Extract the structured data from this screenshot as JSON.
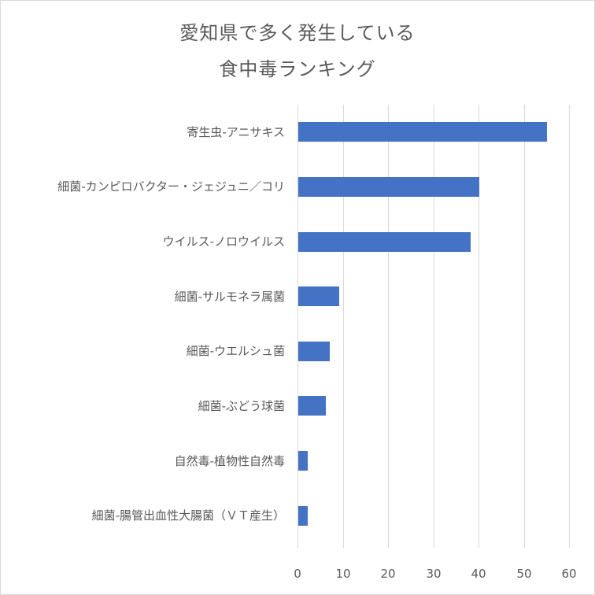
{
  "title": {
    "line1": "愛知県で多く発生している",
    "line2": "食中毒ランキング"
  },
  "colors": {
    "bar": "#4472c4",
    "grid": "#d9d9d9",
    "text": "#595959"
  },
  "chart_data": {
    "type": "bar",
    "orientation": "horizontal",
    "title": "愛知県で多く発生している食中毒ランキング",
    "xlabel": "",
    "ylabel": "",
    "xlim": [
      0,
      60
    ],
    "xticks": [
      "0",
      "10",
      "20",
      "30",
      "40",
      "50",
      "60"
    ],
    "grid": true,
    "legend": null,
    "categories": [
      "寄生虫-アニサキス",
      "細菌-カンピロバクター・ジェジュニ／コリ",
      "ウイルス-ノロウイルス",
      "細菌-サルモネラ属菌",
      "細菌-ウエルシュ菌",
      "細菌-ぶどう球菌",
      "自然毒-植物性自然毒",
      "細菌-腸管出血性大腸菌（ＶＴ産生）"
    ],
    "values": [
      55,
      40,
      38,
      9,
      7,
      6,
      2,
      2
    ]
  }
}
